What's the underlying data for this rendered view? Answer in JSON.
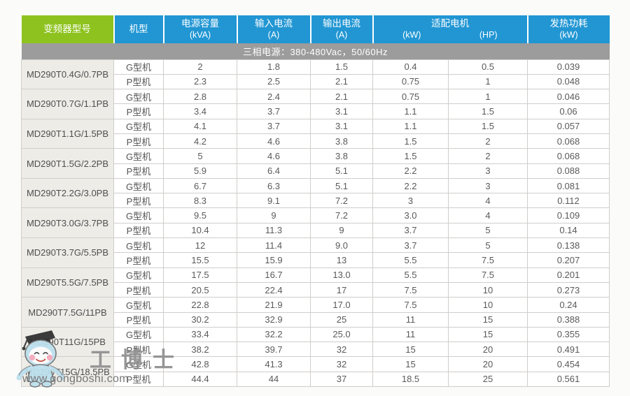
{
  "colors": {
    "green_header": "#8EC31F",
    "blue_header": "#2196D3",
    "band_gray": "#9C9C9C",
    "model_cell_bg": "#EDECE7",
    "cell_border": "#CFCECB",
    "body_text": "#5A5A5A",
    "header_text": "#FFFFFF"
  },
  "table": {
    "headers": {
      "model": "变频器型号",
      "type": "机型",
      "power_capacity_line1": "电源容量",
      "power_capacity_line2": "(kVA)",
      "input_current_line1": "输入电流",
      "input_current_line2": "(A)",
      "output_current_line1": "输出电流",
      "output_current_line2": "(A)",
      "adapted_motor_title": "适配电机",
      "adapted_motor_kw": "(kW)",
      "adapted_motor_hp": "(HP)",
      "heat_loss_line1": "发热功耗",
      "heat_loss_line2": "(kW)"
    },
    "band": "三相电源：380-480Vac，50/60Hz",
    "groups": [
      {
        "model": "MD290T0.4G/0.7PB",
        "rows": [
          [
            "G型机",
            "2",
            "1.8",
            "1.5",
            "0.4",
            "0.5",
            "0.039"
          ],
          [
            "P型机",
            "2.3",
            "2.5",
            "2.1",
            "0.75",
            "1",
            "0.048"
          ]
        ]
      },
      {
        "model": "MD290T0.7G/1.1PB",
        "rows": [
          [
            "G型机",
            "2.8",
            "2.4",
            "2.1",
            "0.75",
            "1",
            "0.046"
          ],
          [
            "P型机",
            "3.4",
            "3.7",
            "3.1",
            "1.1",
            "1.5",
            "0.06"
          ]
        ]
      },
      {
        "model": "MD290T1.1G/1.5PB",
        "rows": [
          [
            "G型机",
            "4.1",
            "3.7",
            "3.1",
            "1.1",
            "1.5",
            "0.057"
          ],
          [
            "P型机",
            "4.2",
            "4.6",
            "3.8",
            "1.5",
            "2",
            "0.068"
          ]
        ]
      },
      {
        "model": "MD290T1.5G/2.2PB",
        "rows": [
          [
            "G型机",
            "5",
            "4.6",
            "3.8",
            "1.5",
            "2",
            "0.068"
          ],
          [
            "P型机",
            "5.9",
            "6.4",
            "5.1",
            "2.2",
            "3",
            "0.088"
          ]
        ]
      },
      {
        "model": "MD290T2.2G/3.0PB",
        "rows": [
          [
            "G型机",
            "6.7",
            "6.3",
            "5.1",
            "2.2",
            "3",
            "0.081"
          ],
          [
            "P型机",
            "8.3",
            "9.1",
            "7.2",
            "3",
            "4",
            "0.112"
          ]
        ]
      },
      {
        "model": "MD290T3.0G/3.7PB",
        "rows": [
          [
            "G型机",
            "9.5",
            "9",
            "7.2",
            "3.0",
            "4",
            "0.109"
          ],
          [
            "P型机",
            "10.4",
            "11.3",
            "9",
            "3.7",
            "5",
            "0.14"
          ]
        ]
      },
      {
        "model": "MD290T3.7G/5.5PB",
        "rows": [
          [
            "G型机",
            "12",
            "11.4",
            "9.0",
            "3.7",
            "5",
            "0.138"
          ],
          [
            "P型机",
            "15.5",
            "15.9",
            "13",
            "5.5",
            "7.5",
            "0.207"
          ]
        ]
      },
      {
        "model": "MD290T5.5G/7.5PB",
        "rows": [
          [
            "G型机",
            "17.5",
            "16.7",
            "13.0",
            "5.5",
            "7.5",
            "0.201"
          ],
          [
            "P型机",
            "20.5",
            "22.4",
            "17",
            "7.5",
            "10",
            "0.273"
          ]
        ]
      },
      {
        "model": "MD290T7.5G/11PB",
        "rows": [
          [
            "G型机",
            "22.8",
            "21.9",
            "17.0",
            "7.5",
            "10",
            "0.24"
          ],
          [
            "P型机",
            "30.2",
            "32.9",
            "25",
            "11",
            "15",
            "0.388"
          ]
        ]
      },
      {
        "model": "MD290T11G/15PB",
        "rows": [
          [
            "G型机",
            "33.4",
            "32.2",
            "25.0",
            "11",
            "15",
            "0.355"
          ],
          [
            "P型机",
            "38.2",
            "39.7",
            "32",
            "15",
            "20",
            "0.491"
          ]
        ]
      },
      {
        "model": "MD290T15G/18.5PB",
        "rows": [
          [
            "G型机",
            "42.8",
            "41.3",
            "32",
            "15",
            "20",
            "0.454"
          ],
          [
            "P型机",
            "44.4",
            "44",
            "37",
            "18.5",
            "25",
            "0.561"
          ]
        ]
      }
    ]
  },
  "watermark": {
    "brand": "工博士",
    "url": "www.gongboshi.com"
  }
}
